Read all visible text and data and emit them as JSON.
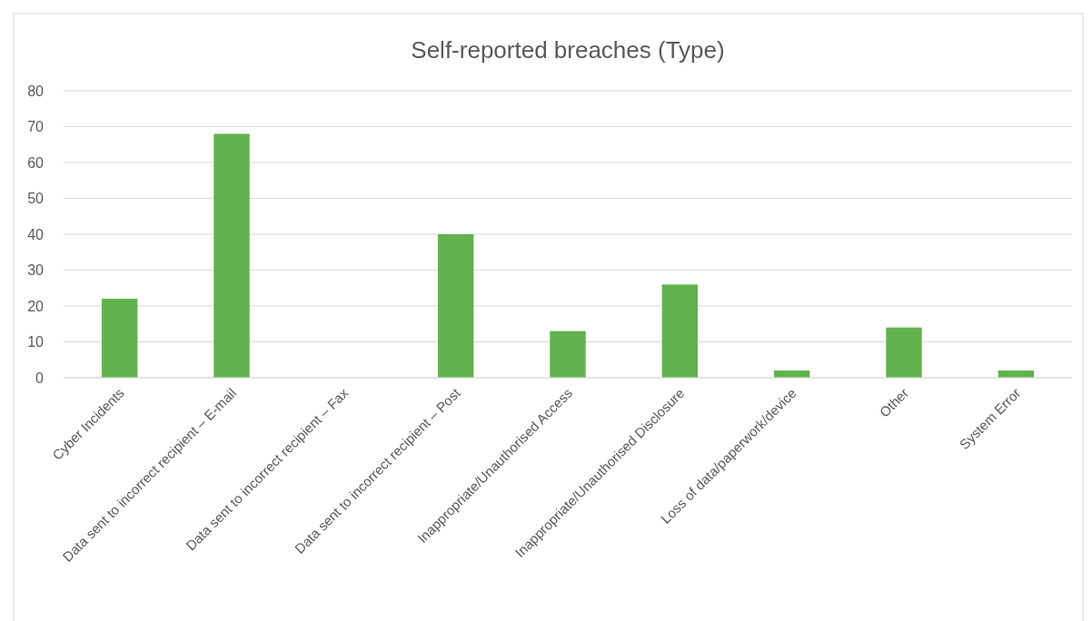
{
  "chart_data": {
    "type": "bar",
    "title": "Self-reported breaches (Type)",
    "categories": [
      "Cyber Incidents",
      "Data sent to incorrect recipient – E-mail",
      "Data sent to incorrect recipient – Fax",
      "Data sent to incorrect recipient – Post",
      "Inappropriate/Unauthorised Access",
      "Inappropriate/Unauthorised Disclosure",
      "Loss of data/paperwork/device",
      "Other",
      "System Error"
    ],
    "values": [
      22,
      68,
      0,
      40,
      13,
      26,
      2,
      14,
      2
    ],
    "color": "#62b34f",
    "ylim": [
      0,
      80
    ],
    "yticks": [
      0,
      10,
      20,
      30,
      40,
      50,
      60,
      70,
      80
    ],
    "grid": "y"
  }
}
